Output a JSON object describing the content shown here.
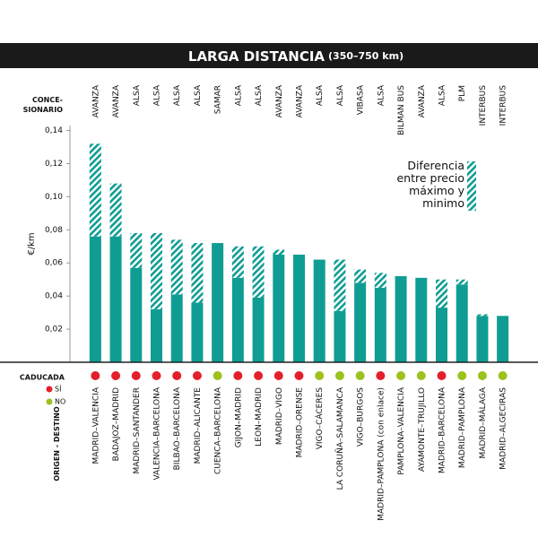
{
  "chart_data": {
    "type": "stacked-bar",
    "title": "LARGA DISTANCIA",
    "subtitle": "(350–750 km)",
    "y_label": "€/km",
    "operator_heading": [
      "CONCE-",
      "SIONARIO"
    ],
    "category_heading": "ORIGEN - DESTINO",
    "operators": [
      "AVANZA",
      "AVANZA",
      "ALSA",
      "ALSA",
      "ALSA",
      "ALSA",
      "SAMAR",
      "ALSA",
      "ALSA",
      "AVANZA",
      "AVANZA",
      "ALSA",
      "ALSA",
      "VIBASA",
      "ALSA",
      "BILMAN BUS",
      "AVANZA",
      "ALSA",
      "PLM",
      "INTERBUS",
      "INTERBUS"
    ],
    "categories": [
      "MADRID–VALENCIA",
      "BADAJOZ–MADRID",
      "MADRID–SANTANDER",
      "VALENCIA–BARCELONA",
      "BILBAO–BARCELONA",
      "MADRID–ALICANTE",
      "CUENCA–BARCELONA",
      "GIJON–MADRID",
      "LEON–MADRID",
      "MADRID–VIGO",
      "MADRID–ORENSE",
      "VIGO–CÁCERES",
      "LA CORUÑA–SALAMANCA",
      "VIGO–BURGOS",
      "MADRID–PAMPLONA (con enlace)",
      "PAMPLONA–VALENCIA",
      "AYAMONTE–TRUJILLO",
      "MADRID–BARCELONA",
      "MADRID–PAMPLONA",
      "MADRID–MÁLAGA",
      "MADRID–ALGECIRAS"
    ],
    "series": [
      {
        "color": "#0f9d93",
        "values": [
          0.076,
          0.076,
          0.057,
          0.032,
          0.041,
          0.036,
          0.072,
          0.051,
          0.039,
          0.065,
          0.065,
          0.062,
          0.031,
          0.048,
          0.045,
          0.052,
          0.051,
          0.033,
          0.047,
          0.028,
          0.028
        ]
      },
      {
        "name": "Diferencia entre precio máximo y minimo",
        "color": "#0f9d93",
        "pattern": "hatch",
        "values": [
          0.056,
          0.032,
          0.021,
          0.046,
          0.033,
          0.036,
          0,
          0.019,
          0.031,
          0.003,
          0,
          0,
          0.031,
          0.008,
          0.009,
          0,
          0,
          0.017,
          0.003,
          0.001,
          0
        ]
      }
    ],
    "ylim": [
      0,
      0.143
    ],
    "yticks": [
      {
        "value": 0.02,
        "label": "0,02"
      },
      {
        "value": 0.04,
        "label": "0,04"
      },
      {
        "value": 0.06,
        "label": "0,06"
      },
      {
        "value": 0.08,
        "label": "0,08"
      },
      {
        "value": 0.1,
        "label": "0,10"
      },
      {
        "value": 0.12,
        "label": "0,12"
      },
      {
        "value": 0.14,
        "label": "0,14"
      }
    ],
    "expired": {
      "title": "CADUCADA",
      "legend": [
        {
          "label": "SÍ",
          "color": "#e3202a"
        },
        {
          "label": "NO",
          "color": "#9dc11d"
        }
      ],
      "values": [
        "SÍ",
        "SÍ",
        "SÍ",
        "SÍ",
        "SÍ",
        "SÍ",
        "NO",
        "SÍ",
        "SÍ",
        "SÍ",
        "SÍ",
        "NO",
        "NO",
        "NO",
        "SÍ",
        "NO",
        "NO",
        "SÍ",
        "NO",
        "NO",
        "NO"
      ]
    }
  }
}
